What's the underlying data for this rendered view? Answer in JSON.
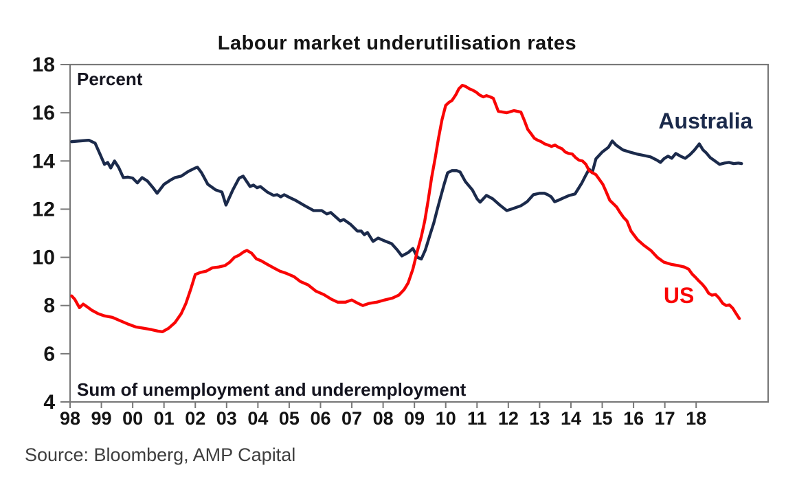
{
  "title": "Labour market underutilisation rates",
  "source": "Source: Bloomberg, AMP Capital",
  "colors": {
    "background": "#ffffff",
    "australia": "#1b2a4b",
    "us": "#f90505",
    "axis": "#787878",
    "title_text": "#141414",
    "tick_text": "#141414",
    "annotation_text": "#14141f",
    "source_text": "#3e3e3e"
  },
  "chart_data": {
    "type": "line",
    "title": "Labour market underutilisation rates",
    "unit_label": "Percent",
    "annotation": "Sum of unemployment and underemployment",
    "xlabel": "",
    "ylabel": "Percent",
    "xlim": [
      1998,
      2020.3
    ],
    "ylim": [
      4,
      18
    ],
    "grid": false,
    "legend_position": "inline-labels",
    "y_ticks": [
      4,
      6,
      8,
      10,
      12,
      14,
      16,
      18
    ],
    "x_tick_years": [
      1998,
      1999,
      2000,
      2001,
      2002,
      2003,
      2004,
      2005,
      2006,
      2007,
      2008,
      2009,
      2010,
      2011,
      2012,
      2013,
      2014,
      2015,
      2016,
      2017,
      2018
    ],
    "x_tick_labels": [
      "98",
      "99",
      "00",
      "01",
      "02",
      "03",
      "04",
      "05",
      "06",
      "07",
      "08",
      "09",
      "10",
      "11",
      "12",
      "13",
      "14",
      "15",
      "16",
      "17",
      "18"
    ],
    "series": [
      {
        "name": "Australia",
        "color": "#1b2a4b",
        "label": {
          "text": "Australia",
          "x": 2018.3,
          "y": 15.66
        },
        "points": [
          [
            1998.05,
            14.8
          ],
          [
            1998.3,
            14.83
          ],
          [
            1998.6,
            14.86
          ],
          [
            1998.8,
            14.74
          ],
          [
            1998.95,
            14.3
          ],
          [
            1999.1,
            13.86
          ],
          [
            1999.2,
            13.94
          ],
          [
            1999.3,
            13.71
          ],
          [
            1999.42,
            14.0
          ],
          [
            1999.55,
            13.74
          ],
          [
            1999.7,
            13.31
          ],
          [
            1999.85,
            13.33
          ],
          [
            2000.0,
            13.29
          ],
          [
            2000.15,
            13.09
          ],
          [
            2000.3,
            13.31
          ],
          [
            2000.47,
            13.17
          ],
          [
            2000.65,
            12.89
          ],
          [
            2000.78,
            12.66
          ],
          [
            2001.0,
            13.03
          ],
          [
            2001.2,
            13.2
          ],
          [
            2001.35,
            13.31
          ],
          [
            2001.55,
            13.37
          ],
          [
            2001.78,
            13.57
          ],
          [
            2002.0,
            13.71
          ],
          [
            2002.07,
            13.74
          ],
          [
            2002.2,
            13.51
          ],
          [
            2002.4,
            13.03
          ],
          [
            2002.65,
            12.8
          ],
          [
            2002.85,
            12.71
          ],
          [
            2002.98,
            12.17
          ],
          [
            2003.2,
            12.8
          ],
          [
            2003.4,
            13.29
          ],
          [
            2003.53,
            13.37
          ],
          [
            2003.75,
            12.94
          ],
          [
            2003.86,
            13.0
          ],
          [
            2003.97,
            12.89
          ],
          [
            2004.08,
            12.94
          ],
          [
            2004.3,
            12.71
          ],
          [
            2004.5,
            12.57
          ],
          [
            2004.62,
            12.6
          ],
          [
            2004.73,
            12.51
          ],
          [
            2004.84,
            12.6
          ],
          [
            2005.05,
            12.46
          ],
          [
            2005.2,
            12.37
          ],
          [
            2005.5,
            12.14
          ],
          [
            2005.78,
            11.94
          ],
          [
            2006.04,
            11.94
          ],
          [
            2006.2,
            11.8
          ],
          [
            2006.33,
            11.86
          ],
          [
            2006.63,
            11.51
          ],
          [
            2006.74,
            11.57
          ],
          [
            2006.96,
            11.37
          ],
          [
            2007.18,
            11.09
          ],
          [
            2007.3,
            11.09
          ],
          [
            2007.4,
            10.94
          ],
          [
            2007.5,
            11.03
          ],
          [
            2007.68,
            10.66
          ],
          [
            2007.84,
            10.8
          ],
          [
            2008.0,
            10.71
          ],
          [
            2008.27,
            10.57
          ],
          [
            2008.45,
            10.31
          ],
          [
            2008.6,
            10.06
          ],
          [
            2008.8,
            10.2
          ],
          [
            2008.95,
            10.37
          ],
          [
            2009.1,
            10.0
          ],
          [
            2009.22,
            9.93
          ],
          [
            2009.35,
            10.31
          ],
          [
            2009.5,
            10.94
          ],
          [
            2009.62,
            11.43
          ],
          [
            2009.72,
            11.94
          ],
          [
            2009.84,
            12.51
          ],
          [
            2009.95,
            13.03
          ],
          [
            2010.06,
            13.51
          ],
          [
            2010.2,
            13.6
          ],
          [
            2010.35,
            13.6
          ],
          [
            2010.46,
            13.54
          ],
          [
            2010.63,
            13.14
          ],
          [
            2010.85,
            12.8
          ],
          [
            2011.0,
            12.43
          ],
          [
            2011.1,
            12.29
          ],
          [
            2011.3,
            12.57
          ],
          [
            2011.5,
            12.43
          ],
          [
            2011.73,
            12.17
          ],
          [
            2011.95,
            11.94
          ],
          [
            2012.16,
            12.03
          ],
          [
            2012.4,
            12.14
          ],
          [
            2012.6,
            12.31
          ],
          [
            2012.8,
            12.6
          ],
          [
            2013.0,
            12.66
          ],
          [
            2013.15,
            12.66
          ],
          [
            2013.26,
            12.6
          ],
          [
            2013.37,
            12.51
          ],
          [
            2013.48,
            12.31
          ],
          [
            2013.6,
            12.37
          ],
          [
            2013.75,
            12.46
          ],
          [
            2013.95,
            12.57
          ],
          [
            2014.13,
            12.63
          ],
          [
            2014.24,
            12.86
          ],
          [
            2014.35,
            13.09
          ],
          [
            2014.46,
            13.37
          ],
          [
            2014.58,
            13.66
          ],
          [
            2014.68,
            13.51
          ],
          [
            2014.8,
            14.09
          ],
          [
            2015.0,
            14.37
          ],
          [
            2015.2,
            14.57
          ],
          [
            2015.32,
            14.83
          ],
          [
            2015.44,
            14.66
          ],
          [
            2015.66,
            14.46
          ],
          [
            2015.88,
            14.37
          ],
          [
            2016.1,
            14.29
          ],
          [
            2016.32,
            14.23
          ],
          [
            2016.54,
            14.17
          ],
          [
            2016.75,
            14.03
          ],
          [
            2016.86,
            13.94
          ],
          [
            2016.97,
            14.09
          ],
          [
            2017.1,
            14.2
          ],
          [
            2017.22,
            14.11
          ],
          [
            2017.35,
            14.31
          ],
          [
            2017.5,
            14.2
          ],
          [
            2017.65,
            14.11
          ],
          [
            2017.8,
            14.26
          ],
          [
            2017.95,
            14.46
          ],
          [
            2018.1,
            14.71
          ],
          [
            2018.22,
            14.46
          ],
          [
            2018.32,
            14.34
          ],
          [
            2018.45,
            14.14
          ],
          [
            2018.6,
            14.0
          ],
          [
            2018.75,
            13.86
          ],
          [
            2018.9,
            13.91
          ],
          [
            2019.05,
            13.94
          ],
          [
            2019.2,
            13.89
          ],
          [
            2019.35,
            13.91
          ],
          [
            2019.45,
            13.89
          ]
        ]
      },
      {
        "name": "US",
        "color": "#f90505",
        "label": {
          "text": "US",
          "x": 2017.45,
          "y": 8.42
        },
        "points": [
          [
            1998.05,
            8.4
          ],
          [
            1998.15,
            8.26
          ],
          [
            1998.3,
            7.91
          ],
          [
            1998.42,
            8.06
          ],
          [
            1998.55,
            7.94
          ],
          [
            1998.7,
            7.8
          ],
          [
            1998.9,
            7.66
          ],
          [
            1999.1,
            7.57
          ],
          [
            1999.35,
            7.51
          ],
          [
            1999.6,
            7.37
          ],
          [
            1999.85,
            7.23
          ],
          [
            2000.1,
            7.11
          ],
          [
            2000.35,
            7.06
          ],
          [
            2000.6,
            7.0
          ],
          [
            2000.8,
            6.94
          ],
          [
            2000.95,
            6.91
          ],
          [
            2001.15,
            7.06
          ],
          [
            2001.35,
            7.29
          ],
          [
            2001.55,
            7.66
          ],
          [
            2001.7,
            8.09
          ],
          [
            2001.85,
            8.66
          ],
          [
            2002.0,
            9.29
          ],
          [
            2002.15,
            9.37
          ],
          [
            2002.35,
            9.43
          ],
          [
            2002.55,
            9.57
          ],
          [
            2002.75,
            9.6
          ],
          [
            2002.95,
            9.66
          ],
          [
            2003.1,
            9.8
          ],
          [
            2003.25,
            10.0
          ],
          [
            2003.4,
            10.09
          ],
          [
            2003.55,
            10.23
          ],
          [
            2003.65,
            10.29
          ],
          [
            2003.8,
            10.17
          ],
          [
            2003.95,
            9.94
          ],
          [
            2004.1,
            9.86
          ],
          [
            2004.3,
            9.71
          ],
          [
            2004.5,
            9.57
          ],
          [
            2004.7,
            9.43
          ],
          [
            2004.9,
            9.34
          ],
          [
            2005.15,
            9.2
          ],
          [
            2005.35,
            9.0
          ],
          [
            2005.6,
            8.86
          ],
          [
            2005.85,
            8.6
          ],
          [
            2006.1,
            8.46
          ],
          [
            2006.35,
            8.26
          ],
          [
            2006.55,
            8.14
          ],
          [
            2006.8,
            8.14
          ],
          [
            2007.0,
            8.23
          ],
          [
            2007.2,
            8.09
          ],
          [
            2007.35,
            8.0
          ],
          [
            2007.55,
            8.09
          ],
          [
            2007.8,
            8.14
          ],
          [
            2008.05,
            8.23
          ],
          [
            2008.3,
            8.31
          ],
          [
            2008.5,
            8.43
          ],
          [
            2008.67,
            8.66
          ],
          [
            2008.8,
            8.94
          ],
          [
            2008.95,
            9.51
          ],
          [
            2009.1,
            10.29
          ],
          [
            2009.22,
            10.86
          ],
          [
            2009.33,
            11.51
          ],
          [
            2009.44,
            12.37
          ],
          [
            2009.55,
            13.31
          ],
          [
            2009.66,
            14.09
          ],
          [
            2009.77,
            14.94
          ],
          [
            2009.88,
            15.71
          ],
          [
            2010.0,
            16.31
          ],
          [
            2010.1,
            16.43
          ],
          [
            2010.2,
            16.51
          ],
          [
            2010.32,
            16.74
          ],
          [
            2010.42,
            17.0
          ],
          [
            2010.53,
            17.14
          ],
          [
            2010.64,
            17.09
          ],
          [
            2010.75,
            17.0
          ],
          [
            2010.86,
            16.94
          ],
          [
            2010.97,
            16.86
          ],
          [
            2011.08,
            16.74
          ],
          [
            2011.2,
            16.66
          ],
          [
            2011.3,
            16.71
          ],
          [
            2011.42,
            16.66
          ],
          [
            2011.52,
            16.6
          ],
          [
            2011.68,
            16.06
          ],
          [
            2011.95,
            16.0
          ],
          [
            2012.18,
            16.09
          ],
          [
            2012.4,
            16.03
          ],
          [
            2012.52,
            15.66
          ],
          [
            2012.62,
            15.31
          ],
          [
            2012.72,
            15.14
          ],
          [
            2012.83,
            14.94
          ],
          [
            2012.94,
            14.86
          ],
          [
            2013.05,
            14.8
          ],
          [
            2013.16,
            14.71
          ],
          [
            2013.27,
            14.66
          ],
          [
            2013.38,
            14.6
          ],
          [
            2013.49,
            14.66
          ],
          [
            2013.6,
            14.57
          ],
          [
            2013.71,
            14.51
          ],
          [
            2013.82,
            14.37
          ],
          [
            2013.93,
            14.31
          ],
          [
            2014.04,
            14.29
          ],
          [
            2014.15,
            14.14
          ],
          [
            2014.26,
            14.03
          ],
          [
            2014.37,
            14.0
          ],
          [
            2014.48,
            13.86
          ],
          [
            2014.58,
            13.6
          ],
          [
            2014.69,
            13.51
          ],
          [
            2014.8,
            13.43
          ],
          [
            2014.91,
            13.23
          ],
          [
            2015.02,
            13.03
          ],
          [
            2015.12,
            12.74
          ],
          [
            2015.24,
            12.37
          ],
          [
            2015.35,
            12.23
          ],
          [
            2015.46,
            12.09
          ],
          [
            2015.57,
            11.86
          ],
          [
            2015.68,
            11.66
          ],
          [
            2015.79,
            11.51
          ],
          [
            2015.92,
            11.09
          ],
          [
            2016.12,
            10.74
          ],
          [
            2016.32,
            10.51
          ],
          [
            2016.56,
            10.28
          ],
          [
            2016.76,
            10.0
          ],
          [
            2016.97,
            9.8
          ],
          [
            2017.2,
            9.71
          ],
          [
            2017.42,
            9.66
          ],
          [
            2017.62,
            9.6
          ],
          [
            2017.76,
            9.51
          ],
          [
            2017.87,
            9.31
          ],
          [
            2017.98,
            9.17
          ],
          [
            2018.08,
            9.03
          ],
          [
            2018.19,
            8.89
          ],
          [
            2018.29,
            8.74
          ],
          [
            2018.4,
            8.51
          ],
          [
            2018.5,
            8.43
          ],
          [
            2018.62,
            8.46
          ],
          [
            2018.73,
            8.31
          ],
          [
            2018.85,
            8.09
          ],
          [
            2018.96,
            8.0
          ],
          [
            2019.06,
            8.03
          ],
          [
            2019.17,
            7.89
          ],
          [
            2019.28,
            7.66
          ],
          [
            2019.38,
            7.46
          ]
        ]
      }
    ]
  }
}
